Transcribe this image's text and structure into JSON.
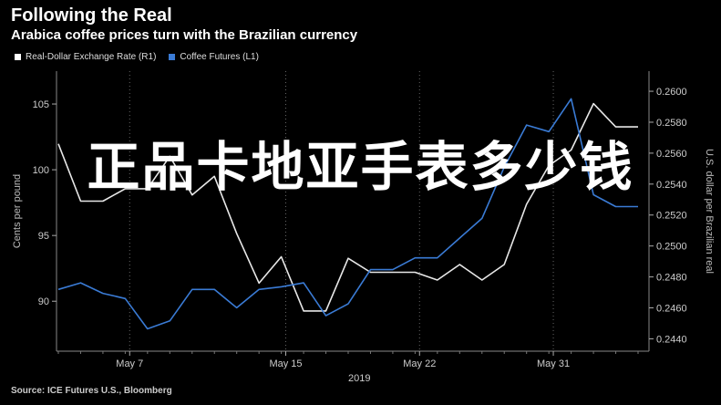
{
  "title": "Following the Real",
  "subtitle": "Arabica coffee prices turn with the Brazilian currency",
  "legend": [
    {
      "label": "Real-Dollar Exchange Rate (R1)",
      "color": "#ffffff"
    },
    {
      "label": "Coffee Futures (L1)",
      "color": "#3a7bd5"
    }
  ],
  "overlay_text": "正品卡地亚手表多少钱",
  "source": "Source: ICE Futures U.S., Bloomberg",
  "chart_data": {
    "type": "line",
    "x": [
      1,
      2,
      3,
      4,
      5,
      6,
      7,
      8,
      9,
      10,
      11,
      12,
      13,
      14,
      15,
      16,
      17,
      18,
      19,
      20,
      21,
      22,
      23,
      24,
      25,
      26,
      27
    ],
    "x_ticks": [
      {
        "x": 4.2,
        "label": "May 7"
      },
      {
        "x": 11.2,
        "label": "May 15"
      },
      {
        "x": 17.2,
        "label": "May 22"
      },
      {
        "x": 23.2,
        "label": "May 31"
      }
    ],
    "x_year_label": "2019",
    "series": [
      {
        "name": "Real-Dollar Exchange Rate (R1)",
        "axis": "right",
        "color": "#e8e8e8",
        "values": [
          0.2566,
          0.2529,
          0.2529,
          0.2537,
          0.2537,
          0.2558,
          0.2533,
          0.2545,
          0.2508,
          0.2476,
          0.2493,
          0.2458,
          0.2458,
          0.2492,
          0.2483,
          0.2483,
          0.2483,
          0.2478,
          0.2488,
          0.2478,
          0.2488,
          0.2527,
          0.2552,
          0.2562,
          0.2592,
          0.2577,
          0.2577
        ]
      },
      {
        "name": "Coffee Futures (L1)",
        "axis": "left",
        "color": "#3a7bd5",
        "values": [
          90.9,
          91.4,
          90.6,
          90.2,
          87.9,
          88.5,
          90.9,
          90.9,
          89.5,
          90.9,
          91.1,
          91.4,
          88.9,
          89.8,
          92.4,
          92.4,
          93.3,
          93.3,
          94.8,
          96.3,
          100.2,
          103.4,
          102.9,
          105.4,
          98.1,
          97.2,
          97.2
        ]
      }
    ],
    "y_left": {
      "label": "Cents per pound",
      "ticks": [
        90,
        95,
        100,
        105
      ],
      "range": [
        86.2,
        107.5
      ]
    },
    "y_right": {
      "label": "U.S. dollar per Brazilian real",
      "ticks": [
        "0.2440",
        "0.2460",
        "0.2480",
        "0.2500",
        "0.2520",
        "0.2540",
        "0.2560",
        "0.2580",
        "0.2600"
      ],
      "range": [
        0.2432,
        0.2613
      ]
    },
    "grid": "vertical dotted"
  }
}
